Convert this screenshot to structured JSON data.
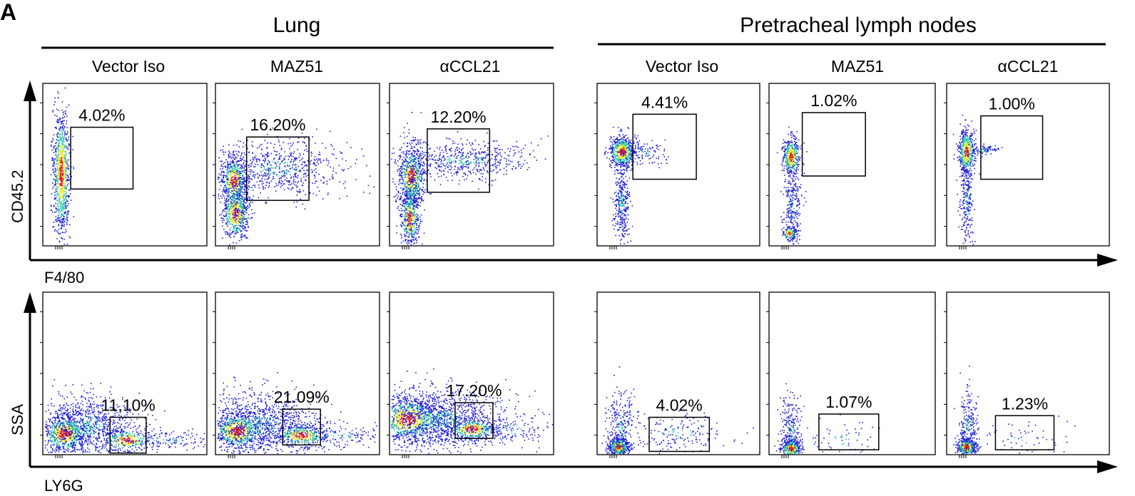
{
  "figure": {
    "panel_letter": "A",
    "groups": [
      {
        "label": "Lung"
      },
      {
        "label": "Pretracheal lymph nodes"
      }
    ],
    "column_labels": [
      "Vector Iso",
      "MAZ51",
      "αCCL21",
      "Vector Iso",
      "MAZ51",
      "αCCL21"
    ],
    "rows": [
      {
        "y_axis_label": "CD45.2",
        "x_axis_label": "F4/80"
      },
      {
        "y_axis_label": "SSA",
        "x_axis_label": "LY6G"
      }
    ]
  },
  "chart_data": {
    "type": "scatter",
    "plot_kind": "flow cytometry dot plots (pseudocolor density)",
    "tick_labels_printed": false,
    "colors": {
      "low_density": "#1f1fd6",
      "mid_density": "#27c7a5",
      "high_density_1": "#e8e82a",
      "high_density_2": "#e02020"
    },
    "rows": [
      {
        "y_label": "CD45.2",
        "x_label": "F4/80",
        "gated_percent": [
          "4.02%",
          "16.20%",
          "12.20%",
          "4.41%",
          "1.02%",
          "1.00%"
        ]
      },
      {
        "y_label": "SSA",
        "x_label": "LY6G",
        "gated_percent": [
          "11.10%",
          "21.09%",
          "17.20%",
          "4.02%",
          "1.07%",
          "1.23%"
        ]
      }
    ]
  }
}
